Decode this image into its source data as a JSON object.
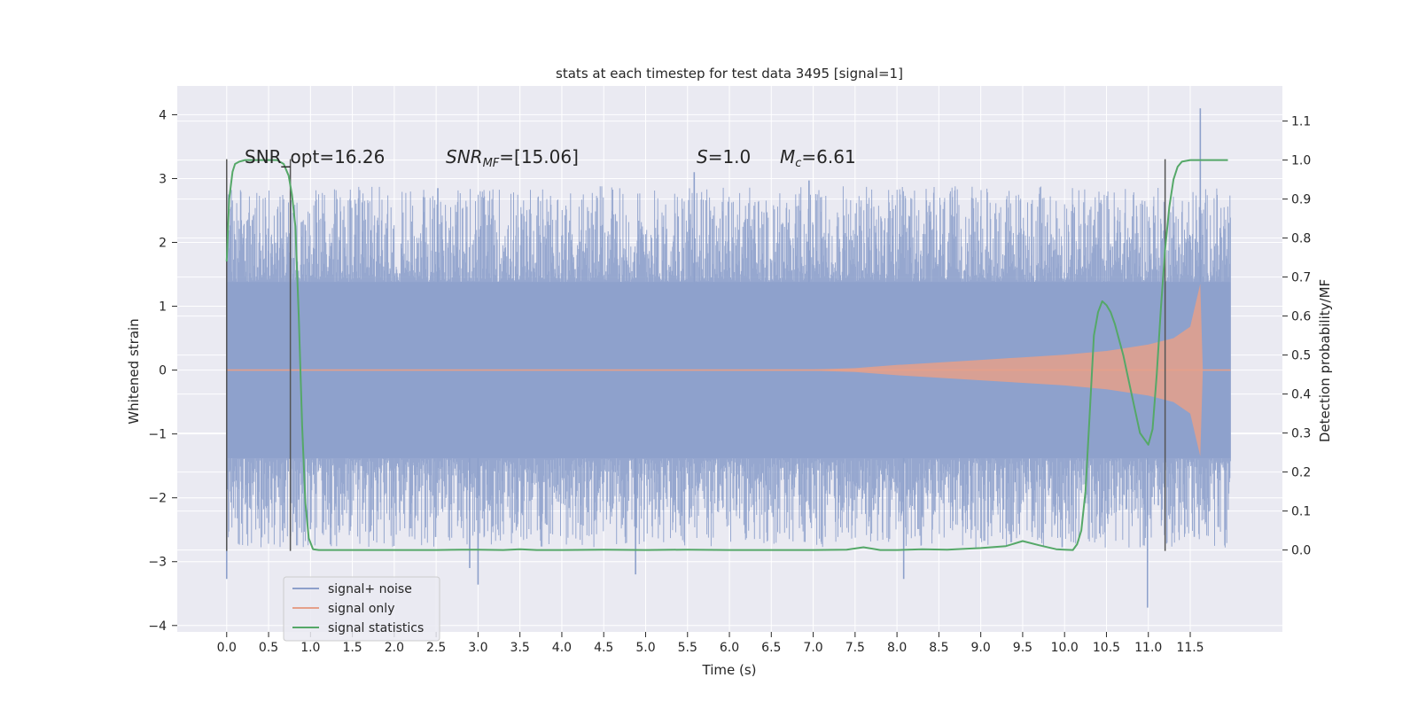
{
  "chart_data": {
    "type": "line",
    "title": "stats at each timestep for test data 3495 [signal=1]",
    "xlabel": "Time (s)",
    "ylabel_left": "Whitened strain",
    "ylabel_right": "Detection probability/MF",
    "xlim": [
      -0.59,
      12.6
    ],
    "ylim_left": [
      -4.1,
      4.45
    ],
    "ylim_right": [
      -0.21,
      1.19
    ],
    "x_ticks": [
      0.0,
      0.5,
      1.0,
      1.5,
      2.0,
      2.5,
      3.0,
      3.5,
      4.0,
      4.5,
      5.0,
      5.5,
      6.0,
      6.5,
      7.0,
      7.5,
      8.0,
      8.5,
      9.0,
      9.5,
      10.0,
      10.5,
      11.0,
      11.5
    ],
    "x_tick_labels": [
      "0.0",
      "0.5",
      "1.0",
      "1.5",
      "2.0",
      "2.5",
      "3.0",
      "3.5",
      "4.0",
      "4.5",
      "5.0",
      "5.5",
      "6.0",
      "6.5",
      "7.0",
      "7.5",
      "8.0",
      "8.5",
      "9.0",
      "9.5",
      "10.0",
      "10.5",
      "11.0",
      "11.5"
    ],
    "y_left_ticks": [
      -4,
      -3,
      -2,
      -1,
      0,
      1,
      2,
      3,
      4
    ],
    "y_left_tick_labels": [
      "−4",
      "−3",
      "−2",
      "−1",
      "0",
      "1",
      "2",
      "3",
      "4"
    ],
    "y_right_ticks": [
      0.0,
      0.1,
      0.2,
      0.3,
      0.4,
      0.5,
      0.6,
      0.7,
      0.8,
      0.9,
      1.0,
      1.1
    ],
    "y_right_tick_labels": [
      "0.0",
      "0.1",
      "0.2",
      "0.3",
      "0.4",
      "0.5",
      "0.6",
      "0.7",
      "0.8",
      "0.9",
      "1.0",
      "1.1"
    ],
    "grid": true,
    "legend_position": "lower-left",
    "annotations": {
      "snr_opt": "SNR_opt=16.26",
      "snr_mf_main": "SNR",
      "snr_mf_sub": "MF",
      "snr_mf_value": "=[15.06]",
      "s_symbol": "S",
      "s_value": "=1.0",
      "mc_symbol": "M",
      "mc_sub": "c",
      "mc_value": "=6.61"
    },
    "vertical_markers_x": [
      0.0,
      0.76,
      11.2
    ],
    "series": [
      {
        "name": "signal+ noise",
        "color": "#8da0cb",
        "axis": "left",
        "x_range": [
          0.0,
          11.98
        ],
        "core_amplitude": 1.38,
        "spike_peaks_x": [
          0.0,
          2.52,
          2.9,
          3.0,
          4.88,
          5.58,
          6.95,
          8.08,
          10.99,
          11.62
        ],
        "spike_peaks_y": [
          -3.27,
          2.85,
          -3.1,
          -3.36,
          -3.2,
          3.1,
          2.97,
          -3.27,
          -3.72,
          4.1
        ]
      },
      {
        "name": "signal only",
        "color": "#e5a08a",
        "axis": "left",
        "x": [
          0.0,
          7.0,
          7.5,
          8.0,
          8.5,
          9.0,
          9.5,
          10.0,
          10.5,
          11.0,
          11.3,
          11.5,
          11.62,
          11.65
        ],
        "envelope": [
          0.0,
          0.01,
          0.03,
          0.08,
          0.12,
          0.16,
          0.2,
          0.24,
          0.3,
          0.4,
          0.5,
          0.68,
          1.35,
          0.0
        ]
      },
      {
        "name": "signal statistics",
        "color": "#55a868",
        "axis": "right",
        "x": [
          0.0,
          0.03,
          0.07,
          0.1,
          0.15,
          0.22,
          0.3,
          0.4,
          0.5,
          0.6,
          0.68,
          0.74,
          0.78,
          0.82,
          0.86,
          0.9,
          0.94,
          0.98,
          1.03,
          1.1,
          1.5,
          2.0,
          2.5,
          2.8,
          3.0,
          3.3,
          3.5,
          3.7,
          4.0,
          4.5,
          5.0,
          5.5,
          6.0,
          6.5,
          7.0,
          7.4,
          7.6,
          7.8,
          8.0,
          8.3,
          8.6,
          9.0,
          9.3,
          9.5,
          9.7,
          9.9,
          10.0,
          10.1,
          10.15,
          10.2,
          10.25,
          10.3,
          10.35,
          10.4,
          10.45,
          10.5,
          10.55,
          10.6,
          10.7,
          10.8,
          10.9,
          11.0,
          11.05,
          11.1,
          11.15,
          11.2,
          11.25,
          11.3,
          11.35,
          11.4,
          11.5,
          11.6,
          11.8,
          11.95
        ],
        "values": [
          0.74,
          0.9,
          0.97,
          0.99,
          0.996,
          1.0,
          1.0,
          1.0,
          1.0,
          1.0,
          0.99,
          0.96,
          0.91,
          0.83,
          0.6,
          0.32,
          0.12,
          0.03,
          0.002,
          0.0,
          0.0,
          0.0,
          0.0,
          0.001,
          0.001,
          0.0,
          0.002,
          0.0,
          0.0,
          0.001,
          0.0,
          0.001,
          0.0,
          0.0,
          0.0,
          0.001,
          0.007,
          0.0,
          0.0,
          0.002,
          0.001,
          0.005,
          0.01,
          0.023,
          0.012,
          0.002,
          0.001,
          0.0,
          0.015,
          0.05,
          0.15,
          0.35,
          0.55,
          0.61,
          0.638,
          0.628,
          0.61,
          0.58,
          0.5,
          0.4,
          0.3,
          0.27,
          0.31,
          0.45,
          0.62,
          0.77,
          0.88,
          0.95,
          0.983,
          0.996,
          1.0,
          1.0,
          1.0,
          1.0
        ]
      }
    ]
  }
}
